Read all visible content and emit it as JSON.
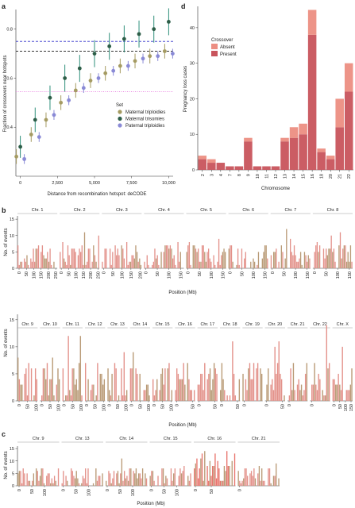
{
  "chart_data": [
    {
      "panel": "a",
      "type": "scatter",
      "xlabel": "Distance from recombination hotspot: deCODE",
      "ylabel": "Fraction of crossovers near hotspots",
      "xlim": [
        -300,
        10300
      ],
      "ylim": [
        0.2,
        0.88
      ],
      "x_ticks": [
        "0",
        "2,500",
        "5,000",
        "7,500",
        "10,000"
      ],
      "x_tick_values": [
        0,
        2500,
        5000,
        7500,
        10000
      ],
      "y_ticks": [
        "0.4",
        "0.6",
        "0.8"
      ],
      "y_tick_values": [
        0.4,
        0.6,
        0.8
      ],
      "legend_title": "Set",
      "hlines": [
        {
          "y": 0.75,
          "style": "dashed",
          "color": "#2b2bc8"
        },
        {
          "y": 0.71,
          "style": "dashed",
          "color": "#333333"
        },
        {
          "y": 0.545,
          "style": "dotted",
          "color": "#e87adf"
        }
      ],
      "x": [
        0,
        1000,
        2000,
        3000,
        4000,
        5000,
        6000,
        7000,
        8000,
        9000,
        10000
      ],
      "series": [
        {
          "name": "Maternal triploidies",
          "color": "#a59b62",
          "values": [
            0.28,
            0.37,
            0.43,
            0.5,
            0.55,
            0.59,
            0.62,
            0.65,
            0.67,
            0.69,
            0.71
          ],
          "err": [
            0.03,
            0.03,
            0.03,
            0.03,
            0.03,
            0.03,
            0.03,
            0.03,
            0.03,
            0.03,
            0.03
          ]
        },
        {
          "name": "Maternal trisomies",
          "color": "#2d5e48",
          "values": [
            0.32,
            0.43,
            0.52,
            0.6,
            0.64,
            0.7,
            0.73,
            0.76,
            0.78,
            0.8,
            0.83
          ],
          "err": [
            0.045,
            0.05,
            0.05,
            0.055,
            0.055,
            0.055,
            0.055,
            0.055,
            0.055,
            0.055,
            0.055
          ]
        },
        {
          "name": "Paternal triploidies",
          "color": "#8a8ad6",
          "values": [
            0.27,
            0.36,
            0.45,
            0.51,
            0.56,
            0.6,
            0.63,
            0.65,
            0.68,
            0.69,
            0.7
          ],
          "err": [
            0.02,
            0.02,
            0.02,
            0.02,
            0.02,
            0.02,
            0.02,
            0.02,
            0.02,
            0.02,
            0.02
          ]
        }
      ]
    },
    {
      "panel": "d",
      "type": "bar",
      "stacked": true,
      "xlabel": "Chromosome",
      "ylabel": "Pregnancy loss cases",
      "ylim": [
        0,
        46
      ],
      "y_ticks": [
        "0",
        "10",
        "20",
        "30",
        "40"
      ],
      "y_tick_values": [
        0,
        10,
        20,
        30,
        40
      ],
      "legend_title": "Crossover",
      "categories": [
        "2",
        "3",
        "4",
        "7",
        "8",
        "9",
        "10",
        "11",
        "12",
        "13",
        "14",
        "15",
        "16",
        "18",
        "20",
        "21",
        "22"
      ],
      "series": [
        {
          "name": "Present",
          "color": "#c8545c",
          "values": [
            3,
            2,
            2,
            1,
            1,
            8,
            1,
            1,
            1,
            8,
            9,
            10,
            38,
            5,
            3,
            12,
            22
          ]
        },
        {
          "name": "Absent",
          "color": "#ec8e82",
          "values": [
            1,
            1,
            0,
            0,
            0,
            1,
            0,
            0,
            0,
            1,
            3,
            3,
            7,
            1,
            1,
            8,
            8
          ]
        }
      ]
    },
    {
      "panel": "b",
      "type": "bar",
      "ylabel": "No. of events",
      "xlabel": "Position (Mb)",
      "y_ticks": [
        "0",
        "5",
        "10",
        "15"
      ],
      "y_tick_values": [
        0,
        5,
        10,
        15
      ],
      "ylim": [
        0,
        16
      ],
      "rows": [
        {
          "chromosomes": [
            {
              "label": "Chr. 1",
              "ticks": [
                "0",
                "50",
                "100",
                "150",
                "200",
                "250"
              ]
            },
            {
              "label": "Chr. 2",
              "ticks": [
                "0",
                "50",
                "100",
                "150",
                "200",
                "250"
              ]
            },
            {
              "label": "Chr. 3",
              "ticks": [
                "0",
                "50",
                "100",
                "150",
                "200"
              ]
            },
            {
              "label": "Chr. 4",
              "ticks": [
                "0",
                "50",
                "100",
                "150"
              ]
            },
            {
              "label": "Chr. 5",
              "ticks": [
                "0",
                "50",
                "100",
                "150"
              ]
            },
            {
              "label": "Chr. 6",
              "ticks": [
                "0",
                "50",
                "100",
                "150"
              ]
            },
            {
              "label": "Chr. 7",
              "ticks": [
                "0",
                "50",
                "100",
                "150"
              ]
            },
            {
              "label": "Chr. 8",
              "ticks": [
                "0",
                "50",
                "100",
                "150"
              ]
            }
          ]
        },
        {
          "chromosomes": [
            {
              "label": "Chr. 9",
              "ticks": [
                "0",
                "50",
                "100"
              ]
            },
            {
              "label": "Chr. 10",
              "ticks": [
                "0",
                "50",
                "100"
              ]
            },
            {
              "label": "Chr. 11",
              "ticks": [
                "0",
                "50",
                "100"
              ]
            },
            {
              "label": "Chr. 12",
              "ticks": [
                "0",
                "50",
                "100"
              ]
            },
            {
              "label": "Chr. 13",
              "ticks": [
                "0",
                "50",
                "100"
              ]
            },
            {
              "label": "Chr. 14",
              "ticks": [
                "0",
                "50",
                "100"
              ]
            },
            {
              "label": "Chr. 15",
              "ticks": [
                "0",
                "50",
                "100"
              ]
            },
            {
              "label": "Chr. 16",
              "ticks": [
                "0",
                "50"
              ]
            },
            {
              "label": "Chr. 17",
              "ticks": [
                "0",
                "50"
              ]
            },
            {
              "label": "Chr. 18",
              "ticks": [
                "0",
                "50"
              ]
            },
            {
              "label": "Chr. 19",
              "ticks": [
                "0"
              ]
            },
            {
              "label": "Chr. 20",
              "ticks": [
                "0",
                "50"
              ]
            },
            {
              "label": "Chr. 21",
              "ticks": [
                "0"
              ]
            },
            {
              "label": "Chr. 22",
              "ticks": [
                "0"
              ]
            },
            {
              "label": "Chr. X",
              "ticks": [
                "0",
                "50",
                "100",
                "150"
              ]
            }
          ]
        }
      ]
    },
    {
      "panel": "c",
      "type": "bar",
      "ylabel": "No. of events",
      "xlabel": "Position (Mb)",
      "y_ticks": [
        "0",
        "5",
        "10",
        "15"
      ],
      "y_tick_values": [
        0,
        5,
        10,
        15
      ],
      "ylim": [
        0,
        16
      ],
      "chromosomes": [
        {
          "label": "Chr. 9",
          "ticks": [
            "0",
            "50",
            "100"
          ]
        },
        {
          "label": "Chr. 13",
          "ticks": [
            "0",
            "50",
            "100"
          ]
        },
        {
          "label": "Chr. 14",
          "ticks": [
            "0",
            "50",
            "100"
          ]
        },
        {
          "label": "Chr. 15",
          "ticks": [
            "0",
            "50",
            "100"
          ]
        },
        {
          "label": "Chr. 16",
          "ticks": [
            "0",
            "50"
          ]
        },
        {
          "label": "Chr. 21",
          "ticks": [
            "0"
          ]
        }
      ]
    }
  ],
  "panel_letters": {
    "a": "a",
    "b": "b",
    "c": "c",
    "d": "d"
  },
  "colors": {
    "bar_main": "#e3918a",
    "bar_alt": "#b99a76",
    "bar_highlight": "#e8746c",
    "strip_line": "#999999"
  }
}
